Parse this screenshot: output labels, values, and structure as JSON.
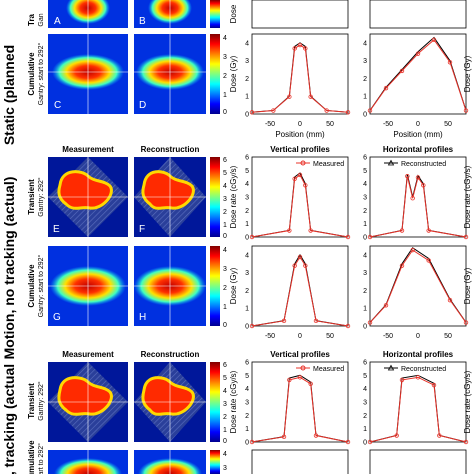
{
  "rows": [
    {
      "label": "Static (planned",
      "panels": [
        {
          "letter": "A",
          "side": "Tra",
          "side2": "Gan"
        },
        {
          "letter": "B"
        },
        {
          "letter": "C",
          "side": "Cumulative",
          "side2": "Gantry: start to 292°"
        },
        {
          "letter": "D"
        }
      ]
    },
    {
      "label": "Motion, no tracking (actual)",
      "col_titles": [
        "Measurement",
        "Reconstruction"
      ],
      "panels": [
        {
          "letter": "E",
          "side": "Transient",
          "side2": "Gantry: 292°"
        },
        {
          "letter": "F"
        },
        {
          "letter": "G",
          "side": "Cumulative",
          "side2": "Gantry: start to 292°"
        },
        {
          "letter": "H"
        }
      ],
      "plot_titles": [
        "Vertical profiles",
        "Horizontal profiles"
      ]
    },
    {
      "label": "ion, tracking (actual",
      "col_titles": [
        "Measurement",
        "Reconstruction"
      ],
      "panels": [
        {
          "letter": "",
          "side": "Transient",
          "side2": "Gantry: 292°"
        },
        {
          "letter": ""
        },
        {
          "letter": "",
          "side": "Cumulative",
          "side2": "start to 292°"
        },
        {
          "letter": ""
        }
      ],
      "plot_titles": [
        "Vertical profiles",
        "Horizontal profiles"
      ]
    }
  ],
  "colorbars": {
    "rate_label": "Dose rate (cGy/s)",
    "rate_label_short": "Dose",
    "dose_label": "Dose (Gy)",
    "rate_ticks": [
      "0",
      "1",
      "2",
      "3",
      "4",
      "5",
      "6"
    ],
    "dose_ticks": [
      "0",
      "1",
      "2",
      "3",
      "4"
    ]
  },
  "legend": {
    "measured": "Measured",
    "reconstructed": "Reconstructed"
  },
  "colors": {
    "measured": "#e8332a",
    "reconstructed": "#000000"
  },
  "axes": {
    "xlabel": "Position (mm)",
    "xticks": [
      "-50",
      "0",
      "50"
    ],
    "xticks_h": [
      "-50",
      "0",
      "50"
    ],
    "yticks": [
      "0",
      "1",
      "2",
      "3",
      "4"
    ],
    "yticks_rate": [
      "0",
      "1",
      "2",
      "3",
      "4",
      "5",
      "6"
    ]
  },
  "chart_data": [
    {
      "type": "line",
      "name": "Static cumulative vertical",
      "x": [
        -90,
        -50,
        -20,
        -10,
        0,
        10,
        20,
        50,
        90
      ],
      "y": [
        0.1,
        0.2,
        1.0,
        3.8,
        4.0,
        3.8,
        1.0,
        0.2,
        0.1
      ],
      "ylim": [
        0,
        4.5
      ],
      "xlim": [
        -90,
        90
      ]
    },
    {
      "type": "line",
      "name": "Static cumulative horizontal",
      "x": [
        -90,
        -60,
        -30,
        0,
        30,
        60,
        90
      ],
      "y": [
        0.2,
        1.5,
        2.5,
        3.5,
        4.3,
        3.0,
        0.2
      ],
      "ylim": [
        0,
        4.5
      ],
      "xlim": [
        -90,
        90
      ]
    },
    {
      "type": "line",
      "name": "Motion no tracking transient vertical",
      "x": [
        -90,
        -20,
        -10,
        0,
        10,
        20,
        90
      ],
      "y": [
        0,
        0.5,
        4.5,
        4.8,
        4.0,
        0.5,
        0
      ],
      "ylim": [
        0,
        6
      ],
      "xlim": [
        -90,
        90
      ]
    },
    {
      "type": "line",
      "name": "Motion no tracking transient horizontal",
      "x": [
        -90,
        -30,
        -20,
        -10,
        0,
        10,
        20,
        90
      ],
      "y": [
        0,
        0.5,
        4.7,
        3.0,
        4.6,
        4.0,
        0.5,
        0
      ],
      "ylim": [
        0,
        6
      ],
      "xlim": [
        -90,
        90
      ]
    },
    {
      "type": "line",
      "name": "Motion no tracking cumulative vertical",
      "x": [
        -90,
        -30,
        -10,
        0,
        10,
        30,
        90
      ],
      "y": [
        0,
        0.3,
        3.5,
        4.0,
        3.5,
        0.3,
        0
      ],
      "ylim": [
        0,
        4.5
      ],
      "xlim": [
        -90,
        90
      ]
    },
    {
      "type": "line",
      "name": "Motion no tracking cumulative horizontal",
      "x": [
        -90,
        -60,
        -30,
        -10,
        20,
        60,
        90
      ],
      "y": [
        0.2,
        1.2,
        3.5,
        4.4,
        3.8,
        1.5,
        0.2
      ],
      "ylim": [
        0,
        4.5
      ],
      "xlim": [
        -90,
        90
      ]
    },
    {
      "type": "line",
      "name": "Tracking transient vertical",
      "x": [
        -90,
        -30,
        -20,
        0,
        20,
        30,
        90
      ],
      "y": [
        0,
        0.4,
        4.8,
        5.0,
        4.5,
        0.5,
        0
      ],
      "ylim": [
        0,
        6
      ],
      "xlim": [
        -90,
        90
      ]
    },
    {
      "type": "line",
      "name": "Tracking transient horizontal",
      "x": [
        -90,
        -40,
        -30,
        0,
        30,
        40,
        90
      ],
      "y": [
        0,
        0.5,
        4.8,
        5.0,
        4.4,
        0.5,
        0
      ],
      "ylim": [
        0,
        6
      ],
      "xlim": [
        -90,
        90
      ]
    }
  ]
}
